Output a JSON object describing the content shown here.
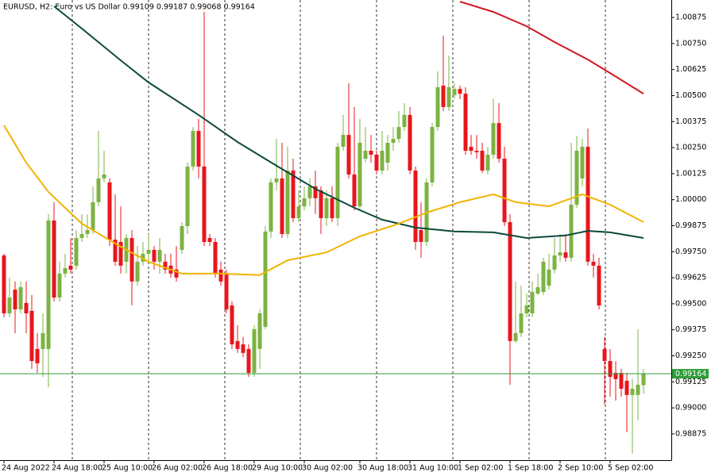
{
  "chart_data": {
    "type": "candlestick",
    "title": "EURUSD, H2:  Euro vs US Dollar  0.99109 0.99187 0.99068 0.99164",
    "categories": [
      "24 Aug 2022",
      null,
      null,
      null,
      null,
      null,
      null,
      null,
      null,
      "24 Aug 18:00",
      null,
      null,
      null,
      null,
      null,
      null,
      null,
      null,
      "25 Aug 10:00",
      null,
      null,
      null,
      null,
      null,
      null,
      null,
      null,
      "26 Aug 02:00",
      null,
      null,
      null,
      null,
      null,
      null,
      null,
      null,
      "26 Aug 18:00",
      null,
      null,
      null,
      null,
      null,
      null,
      null,
      null,
      "29 Aug 10:00",
      null,
      null,
      null,
      null,
      null,
      null,
      null,
      null,
      "30 Aug 02:00",
      null,
      null,
      null,
      null,
      null,
      null,
      null,
      null,
      null,
      "30 Aug 18:00",
      null,
      null,
      null,
      null,
      null,
      null,
      null,
      null,
      "31 Aug 10:00",
      null,
      null,
      null,
      null,
      null,
      null,
      null,
      null,
      "1 Sep 02:00",
      null,
      null,
      null,
      null,
      null,
      null,
      null,
      null,
      "1 Sep 18:00",
      null,
      null,
      null,
      null,
      null,
      null,
      null,
      null,
      "2 Sep 10:00",
      null,
      null,
      null,
      null,
      null,
      null,
      null,
      null,
      "5 Sep 02:00",
      null,
      null,
      null,
      null,
      null,
      null
    ],
    "open": [
      0.99732,
      0.99454,
      0.99568,
      0.99473,
      0.99504,
      0.99466,
      0.99283,
      0.99283,
      0.99283,
      0.999,
      0.9953,
      0.99645,
      0.99683,
      0.99683,
      0.99816,
      0.99835,
      0.99854,
      0.99988,
      1.00102,
      1.00083,
      0.99808,
      0.99797,
      0.99702,
      0.99816,
      0.99607,
      0.99702,
      0.9974,
      0.99759,
      0.99702,
      0.99702,
      0.99683,
      0.99664,
      0.99759,
      0.99873,
      1.00159,
      1.0033,
      1.00159,
      0.99816,
      0.99797,
      0.99664,
      0.99645,
      0.99492,
      0.99321,
      0.99305,
      0.99283,
      0.99168,
      0.99283,
      0.99389,
      0.99847,
      1.00083,
      1.00102,
      0.99835,
      1.0014,
      0.99911,
      0.99968,
      1.00007,
      1.00064,
      1.00045,
      0.99911,
      1.00007,
      0.99911,
      1.00254,
      1.00311,
      1.00121,
      0.99968,
      1.00197,
      1.00235,
      1.00216,
      1.0014,
      1.00178,
      1.00273,
      1.00292,
      1.00349,
      1.00407,
      1.0014,
      0.99854,
      0.99797,
      1.00083,
      1.00349,
      1.00548,
      1.00445,
      1.00502,
      1.00532,
      1.00509,
      1.00254,
      1.00235,
      1.00235,
      1.0014,
      1.00216,
      1.00368,
      1.00197,
      0.99892,
      0.99321,
      0.99359,
      0.99454,
      0.99454,
      0.99549,
      0.99557,
      0.99587,
      0.99664,
      0.99732,
      0.99747,
      0.99721,
      0.99976,
      1.00102,
      1.00254,
      0.99702,
      0.99683,
      0.99283,
      0.99225,
      0.99168,
      0.99168,
      0.9913,
      0.99062,
      0.99062,
      0.99109
    ],
    "high": [
      0.9974,
      0.99626,
      0.99607,
      0.99607,
      0.99607,
      0.99542,
      0.99359,
      0.99454,
      0.9993,
      0.99988,
      0.99702,
      0.9974,
      0.99816,
      0.99854,
      0.9993,
      0.9993,
      1.00064,
      1.0033,
      1.00235,
      1.00102,
      1.00026,
      0.99968,
      0.99835,
      0.99854,
      0.99778,
      0.99797,
      0.99835,
      0.99778,
      0.99816,
      0.9974,
      0.9974,
      0.99778,
      0.99892,
      1.00178,
      1.00349,
      1.00388,
      1.00902,
      0.99835,
      0.99816,
      0.99702,
      0.99664,
      0.99511,
      0.99397,
      0.9934,
      0.99305,
      0.99397,
      0.99473,
      0.99873,
      1.00102,
      1.00292,
      1.00273,
      1.00254,
      1.00197,
      1.00045,
      1.00064,
      1.00102,
      1.0014,
      1.00064,
      1.00045,
      1.00064,
      1.00273,
      1.00407,
      1.00559,
      1.00445,
      1.00388,
      1.00349,
      1.00311,
      1.00235,
      1.0033,
      1.00311,
      1.00349,
      1.00426,
      1.00464,
      1.00445,
      1.00159,
      0.99988,
      1.00102,
      1.00368,
      1.00616,
      1.00788,
      1.00692,
      1.00559,
      1.00548,
      1.0054,
      1.00311,
      1.00311,
      1.00273,
      1.00254,
      1.00483,
      1.00464,
      1.00254,
      0.9993,
      0.99607,
      0.99587,
      0.99549,
      0.99607,
      0.99645,
      0.99721,
      0.9974,
      0.99816,
      0.99835,
      0.99835,
      1.00273,
      1.00306,
      1.00292,
      1.00342,
      0.9974,
      0.99721,
      0.9934,
      0.99283,
      0.99225,
      0.99187,
      0.99168,
      0.99138,
      0.99378,
      0.99187
    ],
    "low": [
      0.99435,
      0.99435,
      0.99359,
      0.99454,
      0.99359,
      0.99187,
      0.99168,
      0.99149,
      0.991,
      0.99511,
      0.99511,
      0.99626,
      0.99645,
      0.99664,
      0.99797,
      0.99816,
      0.99835,
      0.99968,
      1.00083,
      0.99778,
      0.99683,
      0.99645,
      0.99645,
      0.99492,
      0.99587,
      0.99683,
      0.99702,
      0.99664,
      0.99645,
      0.99645,
      0.99626,
      0.99607,
      0.9974,
      0.99835,
      1.0014,
      1.00102,
      0.99778,
      0.99778,
      0.99626,
      0.99587,
      0.99454,
      0.99283,
      0.99264,
      0.99244,
      0.99149,
      0.99149,
      0.99187,
      0.99378,
      0.99816,
      1.00045,
      0.99816,
      0.99816,
      0.99892,
      0.99892,
      0.99949,
      0.99968,
      0.9993,
      0.99835,
      0.99873,
      0.99892,
      0.99873,
      1.00235,
      1.00102,
      0.99949,
      0.99949,
      1.00178,
      1.00178,
      1.00121,
      1.00121,
      1.0014,
      1.00235,
      1.00273,
      1.0033,
      1.00121,
      0.99759,
      0.99721,
      0.99778,
      1.00064,
      1.0033,
      1.00426,
      1.00426,
      1.00483,
      1.00483,
      1.00216,
      1.00216,
      1.00197,
      1.00128,
      1.00121,
      1.00197,
      1.00178,
      0.99873,
      0.99111,
      0.99313,
      0.9934,
      0.99435,
      0.99435,
      0.99542,
      0.99542,
      0.99568,
      0.99645,
      0.99702,
      0.99702,
      0.99702,
      0.99961,
      1.00064,
      0.99683,
      0.99626,
      0.99473,
      0.99016,
      0.99054,
      0.99035,
      0.99054,
      0.98883,
      0.9878,
      0.9894,
      0.99068
    ],
    "close": [
      0.99454,
      0.9953,
      0.99473,
      0.9958,
      0.99454,
      0.99225,
      0.99214,
      0.99359,
      0.999,
      0.9953,
      0.99645,
      0.99671,
      0.99664,
      0.99816,
      0.99835,
      0.99854,
      0.99988,
      1.00102,
      1.00121,
      0.99808,
      0.99702,
      0.99683,
      0.99816,
      0.99607,
      0.99702,
      0.9974,
      0.99759,
      0.99702,
      0.99759,
      0.99664,
      0.99645,
      0.99626,
      0.99873,
      1.00159,
      1.0033,
      1.00159,
      0.99797,
      0.99797,
      0.99645,
      0.99607,
      0.99473,
      0.99305,
      0.99283,
      0.99264,
      0.99168,
      0.99378,
      0.99454,
      0.99847,
      1.00083,
      1.00102,
      0.99835,
      1.0014,
      0.99911,
      0.99968,
      1.00007,
      1.00064,
      1.00007,
      0.99911,
      1.00007,
      0.99911,
      1.00254,
      1.00311,
      1.00121,
      0.99968,
      1.00273,
      1.00235,
      1.00216,
      1.0014,
      1.00235,
      1.00273,
      1.00292,
      1.00349,
      1.00407,
      1.0014,
      0.99797,
      0.99797,
      1.00083,
      1.00349,
      1.0054,
      1.00445,
      1.0054,
      1.00532,
      1.00509,
      1.00235,
      1.00235,
      1.00228,
      1.0014,
      1.00216,
      1.00368,
      1.00197,
      0.99892,
      0.99321,
      0.99359,
      0.99454,
      0.99492,
      0.99557,
      0.9958,
      0.99702,
      0.99664,
      0.99732,
      0.99747,
      0.99721,
      0.99976,
      1.00235,
      1.00254,
      0.99702,
      0.99683,
      0.99492,
      0.99225,
      0.99149,
      0.99138,
      0.99092,
      0.99062,
      0.99092,
      0.99111,
      0.99164
    ],
    "up_color": "#7cb342",
    "down_color": "#e8161c",
    "overlays": [
      {
        "color": "#0d4a3c",
        "x": [
          9,
          14,
          21,
          26,
          35,
          42,
          49,
          56,
          63,
          68,
          74,
          81,
          88,
          94,
          101,
          105,
          109,
          115
        ],
        "values": [
          1.00929,
          1.00822,
          1.00669,
          1.00563,
          1.00407,
          1.00277,
          1.00163,
          1.00052,
          0.99961,
          0.99904,
          0.99866,
          0.99847,
          0.99843,
          0.99816,
          0.99828,
          0.9985,
          0.99843,
          0.99816
        ]
      },
      {
        "color": "#f0b400",
        "x": [
          0,
          4,
          8,
          14,
          21,
          26,
          32,
          39,
          46,
          51,
          58,
          64,
          71,
          76,
          82,
          88,
          92,
          98,
          104,
          109,
          115
        ],
        "values": [
          1.00357,
          1.00178,
          1.00037,
          0.99885,
          0.99774,
          0.99702,
          0.99645,
          0.99645,
          0.99638,
          0.99709,
          0.99747,
          0.99824,
          0.99885,
          0.99938,
          0.99988,
          1.00026,
          0.99988,
          0.99968,
          1.00026,
          0.99976,
          0.99892
        ]
      },
      {
        "color": "#d0161c",
        "x": [
          82,
          88,
          94,
          99,
          105,
          109,
          115
        ],
        "values": [
          1.00951,
          1.00902,
          1.00833,
          1.00757,
          1.00673,
          1.00608,
          1.00509
        ]
      }
    ],
    "current_price": 0.99164,
    "current_price_label": "0.99164",
    "current_price_color": "#2e9e3a",
    "ylim": [
      0.98749,
      1.00959
    ],
    "yticks": [
      1.00875,
      {
        "value": 1.0075,
        "label": "1.00750"
      },
      1.00625,
      {
        "value": 1.005,
        "label": "1.00500"
      },
      1.00375,
      {
        "value": 1.0025,
        "label": "1.00250"
      },
      1.00125,
      {
        "value": 1,
        "label": "1.00000"
      },
      0.99875,
      {
        "value": 0.9975,
        "label": "0.99750"
      },
      0.99625,
      {
        "value": 0.995,
        "label": "0.99500"
      },
      0.99375,
      {
        "value": 0.9925,
        "label": "0.99250"
      },
      0.99125,
      {
        "value": 0.99,
        "label": "0.99000"
      },
      0.98875
    ]
  }
}
